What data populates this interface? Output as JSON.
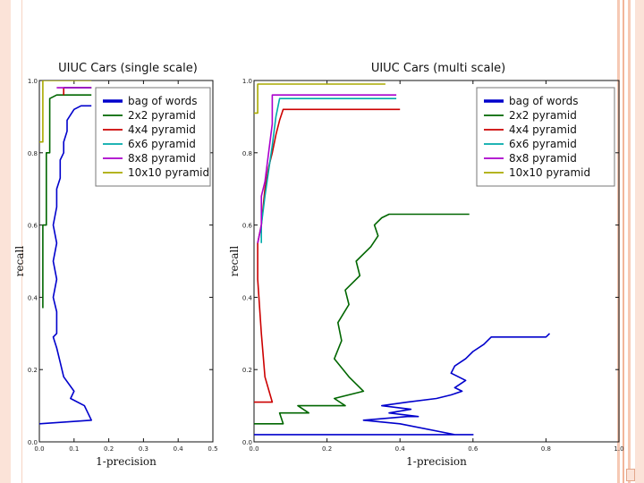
{
  "slide": {
    "accent_color": "#f6c9b4"
  },
  "chart_data": [
    {
      "type": "line",
      "title": "UIUC Cars (single scale)",
      "xlabel": "1-precision",
      "ylabel": "recall",
      "xlim": [
        0,
        0.5
      ],
      "ylim": [
        0,
        1
      ],
      "xticks": [
        0,
        0.1,
        0.2,
        0.3,
        0.4,
        0.5
      ],
      "xtick_labels": [
        "0.0",
        "0.1",
        "0.2",
        "0.3",
        "0.4",
        "0.5"
      ],
      "yticks": [
        0,
        0.2,
        0.4,
        0.6,
        0.8,
        1.0
      ],
      "ytick_labels": [
        "0.0",
        "0.2",
        "0.4",
        "0.6",
        "0.8",
        "1.0"
      ],
      "grid": false,
      "legend_position": "top-right",
      "series": [
        {
          "name": "bag of words",
          "color": "#0000cc",
          "points": [
            [
              0.0,
              0.05
            ],
            [
              0.15,
              0.06
            ],
            [
              0.13,
              0.1
            ],
            [
              0.09,
              0.12
            ],
            [
              0.1,
              0.14
            ],
            [
              0.07,
              0.18
            ],
            [
              0.06,
              0.22
            ],
            [
              0.05,
              0.26
            ],
            [
              0.04,
              0.29
            ],
            [
              0.05,
              0.3
            ],
            [
              0.05,
              0.36
            ],
            [
              0.04,
              0.4
            ],
            [
              0.05,
              0.45
            ],
            [
              0.04,
              0.5
            ],
            [
              0.05,
              0.55
            ],
            [
              0.04,
              0.6
            ],
            [
              0.05,
              0.65
            ],
            [
              0.05,
              0.7
            ],
            [
              0.06,
              0.73
            ],
            [
              0.06,
              0.78
            ],
            [
              0.07,
              0.8
            ],
            [
              0.07,
              0.83
            ],
            [
              0.08,
              0.86
            ],
            [
              0.08,
              0.89
            ],
            [
              0.1,
              0.92
            ],
            [
              0.12,
              0.93
            ],
            [
              0.15,
              0.93
            ]
          ]
        },
        {
          "name": "2x2 pyramid",
          "color": "#006600",
          "points": [
            [
              0.01,
              0.37
            ],
            [
              0.01,
              0.6
            ],
            [
              0.02,
              0.6
            ],
            [
              0.02,
              0.8
            ],
            [
              0.03,
              0.8
            ],
            [
              0.03,
              0.95
            ],
            [
              0.05,
              0.96
            ],
            [
              0.07,
              0.96
            ],
            [
              0.15,
              0.96
            ]
          ]
        },
        {
          "name": "4x4 pyramid",
          "color": "#cc0000",
          "points": [
            [
              0.07,
              0.96
            ],
            [
              0.07,
              0.98
            ],
            [
              0.15,
              0.98
            ]
          ]
        },
        {
          "name": "6x6 pyramid",
          "color": "#00aaaa",
          "points": [
            [
              0.07,
              0.98
            ],
            [
              0.15,
              0.98
            ]
          ]
        },
        {
          "name": "8x8 pyramid",
          "color": "#aa00cc",
          "points": [
            [
              0.05,
              0.98
            ],
            [
              0.15,
              0.98
            ]
          ]
        },
        {
          "name": "10x10 pyramid",
          "color": "#aaaa00",
          "points": [
            [
              0.0,
              0.83
            ],
            [
              0.01,
              0.83
            ],
            [
              0.01,
              1.0
            ],
            [
              0.15,
              1.0
            ]
          ]
        }
      ]
    },
    {
      "type": "line",
      "title": "UIUC Cars (multi scale)",
      "xlabel": "1-precision",
      "ylabel": "recall",
      "xlim": [
        0,
        1
      ],
      "ylim": [
        0,
        1
      ],
      "xticks": [
        0,
        0.2,
        0.4,
        0.6,
        0.8,
        1.0
      ],
      "xtick_labels": [
        "0.0",
        "0.2",
        "0.4",
        "0.6",
        "0.8",
        "1.0"
      ],
      "yticks": [
        0,
        0.2,
        0.4,
        0.6,
        0.8,
        1.0
      ],
      "ytick_labels": [
        "0.0",
        "0.2",
        "0.4",
        "0.6",
        "0.8",
        "1.0"
      ],
      "grid": false,
      "legend_position": "top-right",
      "series": [
        {
          "name": "bag of words",
          "color": "#0000cc",
          "points": [
            [
              0.0,
              0.02
            ],
            [
              0.6,
              0.02
            ],
            [
              0.55,
              0.02
            ],
            [
              0.4,
              0.05
            ],
            [
              0.3,
              0.06
            ],
            [
              0.42,
              0.07
            ],
            [
              0.45,
              0.07
            ],
            [
              0.37,
              0.08
            ],
            [
              0.43,
              0.09
            ],
            [
              0.35,
              0.1
            ],
            [
              0.42,
              0.11
            ],
            [
              0.5,
              0.12
            ],
            [
              0.54,
              0.13
            ],
            [
              0.57,
              0.14
            ],
            [
              0.55,
              0.15
            ],
            [
              0.58,
              0.17
            ],
            [
              0.54,
              0.19
            ],
            [
              0.55,
              0.21
            ],
            [
              0.58,
              0.23
            ],
            [
              0.6,
              0.25
            ],
            [
              0.63,
              0.27
            ],
            [
              0.65,
              0.29
            ],
            [
              0.8,
              0.29
            ],
            [
              0.81,
              0.3
            ]
          ]
        },
        {
          "name": "2x2 pyramid",
          "color": "#006600",
          "points": [
            [
              0.0,
              0.05
            ],
            [
              0.08,
              0.05
            ],
            [
              0.07,
              0.08
            ],
            [
              0.15,
              0.08
            ],
            [
              0.12,
              0.1
            ],
            [
              0.25,
              0.1
            ],
            [
              0.22,
              0.12
            ],
            [
              0.3,
              0.14
            ],
            [
              0.26,
              0.18
            ],
            [
              0.22,
              0.23
            ],
            [
              0.24,
              0.28
            ],
            [
              0.23,
              0.33
            ],
            [
              0.26,
              0.38
            ],
            [
              0.25,
              0.42
            ],
            [
              0.29,
              0.46
            ],
            [
              0.28,
              0.5
            ],
            [
              0.32,
              0.54
            ],
            [
              0.34,
              0.57
            ],
            [
              0.33,
              0.6
            ],
            [
              0.35,
              0.62
            ],
            [
              0.37,
              0.63
            ],
            [
              0.59,
              0.63
            ]
          ]
        },
        {
          "name": "4x4 pyramid",
          "color": "#cc0000",
          "points": [
            [
              0.0,
              0.11
            ],
            [
              0.05,
              0.11
            ],
            [
              0.03,
              0.18
            ],
            [
              0.02,
              0.3
            ],
            [
              0.01,
              0.45
            ],
            [
              0.01,
              0.55
            ],
            [
              0.02,
              0.6
            ],
            [
              0.03,
              0.7
            ],
            [
              0.04,
              0.76
            ],
            [
              0.05,
              0.8
            ],
            [
              0.06,
              0.85
            ],
            [
              0.07,
              0.89
            ],
            [
              0.08,
              0.92
            ],
            [
              0.4,
              0.92
            ]
          ]
        },
        {
          "name": "6x6 pyramid",
          "color": "#00aaaa",
          "points": [
            [
              0.02,
              0.55
            ],
            [
              0.02,
              0.6
            ],
            [
              0.03,
              0.68
            ],
            [
              0.04,
              0.75
            ],
            [
              0.05,
              0.82
            ],
            [
              0.06,
              0.9
            ],
            [
              0.07,
              0.95
            ],
            [
              0.39,
              0.95
            ]
          ]
        },
        {
          "name": "8x8 pyramid",
          "color": "#aa00cc",
          "points": [
            [
              0.01,
              0.55
            ],
            [
              0.02,
              0.6
            ],
            [
              0.02,
              0.68
            ],
            [
              0.03,
              0.72
            ],
            [
              0.04,
              0.8
            ],
            [
              0.05,
              0.88
            ],
            [
              0.05,
              0.96
            ],
            [
              0.39,
              0.96
            ]
          ]
        },
        {
          "name": "10x10 pyramid",
          "color": "#aaaa00",
          "points": [
            [
              0.0,
              0.91
            ],
            [
              0.01,
              0.91
            ],
            [
              0.01,
              0.99
            ],
            [
              0.36,
              0.99
            ]
          ]
        }
      ]
    }
  ]
}
